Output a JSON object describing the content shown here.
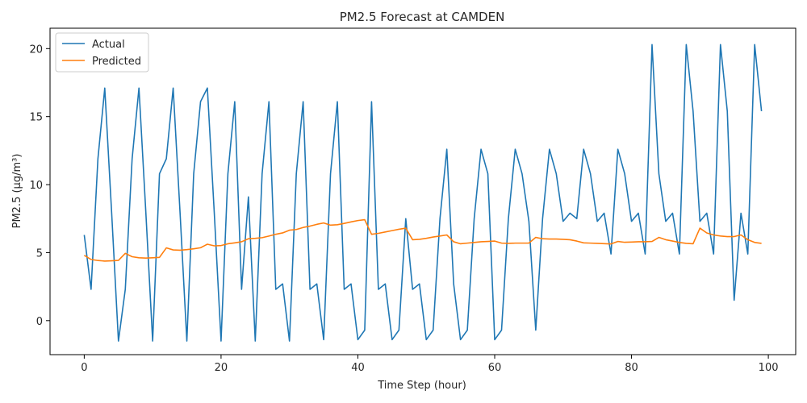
{
  "chart_data": {
    "type": "line",
    "title": "PM2.5 Forecast at CAMDEN",
    "xlabel": "Time Step (hour)",
    "ylabel": "PM2.5 (µg/m³)",
    "xlim": [
      -5,
      104
    ],
    "ylim": [
      -2.5,
      21.5
    ],
    "xticks": [
      0,
      20,
      40,
      60,
      80,
      100
    ],
    "yticks": [
      0,
      5,
      10,
      15,
      20
    ],
    "grid": false,
    "legend_position": "upper left",
    "series": [
      {
        "name": "Actual",
        "color": "#1f77b4",
        "values": [
          6.3,
          2.3,
          11.9,
          17.1,
          8.0,
          -1.5,
          2.3,
          11.9,
          17.1,
          8.0,
          -1.5,
          10.8,
          11.9,
          17.1,
          8.0,
          -1.5,
          10.8,
          16.1,
          17.1,
          8.0,
          -1.5,
          10.8,
          16.1,
          2.3,
          9.1,
          -1.5,
          10.8,
          16.1,
          2.3,
          2.7,
          -1.5,
          10.8,
          16.1,
          2.3,
          2.7,
          -1.4,
          10.8,
          16.1,
          2.3,
          2.7,
          -1.4,
          -0.7,
          16.1,
          2.3,
          2.7,
          -1.4,
          -0.7,
          7.5,
          2.3,
          2.7,
          -1.4,
          -0.7,
          7.5,
          12.6,
          2.7,
          -1.4,
          -0.7,
          7.5,
          12.6,
          10.8,
          -1.4,
          -0.7,
          7.5,
          12.6,
          10.8,
          7.3,
          -0.7,
          7.5,
          12.6,
          10.8,
          7.3,
          7.9,
          7.5,
          12.6,
          10.8,
          7.3,
          7.9,
          4.9,
          12.6,
          10.8,
          7.3,
          7.9,
          4.9,
          20.3,
          10.8,
          7.3,
          7.9,
          4.9,
          20.3,
          15.4,
          7.3,
          7.9,
          4.9,
          20.3,
          15.4,
          1.5,
          7.9,
          4.9,
          20.3,
          15.4
        ]
      },
      {
        "name": "Predicted",
        "color": "#ff7f0e",
        "values": [
          4.8,
          4.5,
          4.42,
          4.38,
          4.4,
          4.43,
          4.95,
          4.7,
          4.62,
          4.6,
          4.62,
          4.65,
          5.35,
          5.2,
          5.18,
          5.22,
          5.28,
          5.36,
          5.62,
          5.5,
          5.52,
          5.65,
          5.72,
          5.8,
          6.02,
          6.05,
          6.1,
          6.22,
          6.35,
          6.45,
          6.65,
          6.7,
          6.85,
          6.95,
          7.08,
          7.18,
          7.02,
          7.05,
          7.15,
          7.26,
          7.36,
          7.42,
          6.35,
          6.42,
          6.52,
          6.62,
          6.72,
          6.8,
          5.95,
          5.98,
          6.05,
          6.15,
          6.22,
          6.3,
          5.8,
          5.65,
          5.7,
          5.75,
          5.8,
          5.82,
          5.85,
          5.7,
          5.68,
          5.7,
          5.7,
          5.7,
          6.12,
          6.02,
          6.0,
          6.0,
          5.98,
          5.95,
          5.85,
          5.72,
          5.7,
          5.68,
          5.66,
          5.64,
          5.82,
          5.76,
          5.78,
          5.8,
          5.8,
          5.82,
          6.12,
          5.95,
          5.85,
          5.75,
          5.68,
          5.65,
          6.8,
          6.45,
          6.3,
          6.22,
          6.18,
          6.18,
          6.3,
          5.95,
          5.75,
          5.68
        ]
      }
    ]
  }
}
